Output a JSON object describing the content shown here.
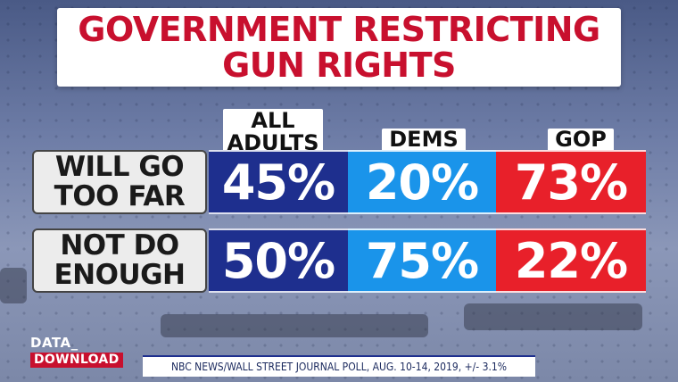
{
  "title_lines": [
    "GOVERNMENT RESTRICTING",
    "GUN RIGHTS"
  ],
  "chart_data": {
    "type": "table",
    "title": "GOVERNMENT RESTRICTING GUN RIGHTS",
    "columns": [
      {
        "label_lines": [
          "ALL",
          "ADULTS"
        ],
        "color": "#1e2f8e"
      },
      {
        "label_lines": [
          "DEMS"
        ],
        "color": "#1a94ea"
      },
      {
        "label_lines": [
          "GOP"
        ],
        "color": "#e8202a"
      }
    ],
    "rows": [
      {
        "label_lines": [
          "WILL GO",
          "TOO FAR"
        ],
        "values": [
          45,
          20,
          73
        ],
        "display": [
          "45%",
          "20%",
          "73%"
        ]
      },
      {
        "label_lines": [
          "NOT DO",
          "ENOUGH"
        ],
        "values": [
          50,
          75,
          22
        ],
        "display": [
          "50%",
          "75%",
          "22%"
        ]
      }
    ],
    "unit": "%"
  },
  "logo": {
    "top": "DATA_",
    "bottom": "DOWNLOAD"
  },
  "source": "NBC NEWS/WALL STREET JOURNAL POLL, AUG. 10-14, 2019, +/- 3.1%"
}
